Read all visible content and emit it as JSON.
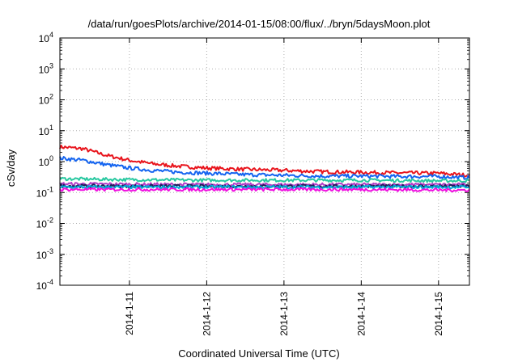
{
  "chart_data": {
    "type": "line",
    "title": "/data/run/goesPlots/archive/2014-01-15/08:00/flux/../bryn/5daysMoon.plot",
    "xlabel": "Coordinated Universal Time (UTC)",
    "ylabel": "cSv/day",
    "yscale": "log",
    "ylim_exponents": [
      -4,
      4
    ],
    "ytick_base": "10",
    "ytick_exponents": [
      "4",
      "3",
      "2",
      "1",
      "0",
      "-1",
      "-2",
      "-3",
      "-4"
    ],
    "xlim_days": [
      10.1,
      15.4
    ],
    "xticks": [
      {
        "day": 11,
        "label": "2014-1-11"
      },
      {
        "day": 12,
        "label": "2014-1-12"
      },
      {
        "day": 13,
        "label": "2014-1-13"
      },
      {
        "day": 14,
        "label": "2014-1-14"
      },
      {
        "day": 15,
        "label": "2014-1-15"
      }
    ],
    "grid": true,
    "series": [
      {
        "color": "#e8141c",
        "points": [
          [
            10.1,
            3.0
          ],
          [
            10.4,
            2.6
          ],
          [
            10.7,
            1.6
          ],
          [
            11.0,
            1.1
          ],
          [
            11.3,
            0.85
          ],
          [
            11.6,
            0.72
          ],
          [
            12.0,
            0.62
          ],
          [
            12.5,
            0.56
          ],
          [
            13.0,
            0.52
          ],
          [
            13.5,
            0.47
          ],
          [
            14.0,
            0.45
          ],
          [
            14.5,
            0.43
          ],
          [
            15.0,
            0.42
          ],
          [
            15.4,
            0.36
          ]
        ]
      },
      {
        "color": "#1464f0",
        "points": [
          [
            10.1,
            1.3
          ],
          [
            10.4,
            1.1
          ],
          [
            10.7,
            0.8
          ],
          [
            11.0,
            0.62
          ],
          [
            11.3,
            0.52
          ],
          [
            11.6,
            0.46
          ],
          [
            12.0,
            0.42
          ],
          [
            12.5,
            0.38
          ],
          [
            13.0,
            0.36
          ],
          [
            13.5,
            0.34
          ],
          [
            14.0,
            0.34
          ],
          [
            14.5,
            0.33
          ],
          [
            15.0,
            0.33
          ],
          [
            15.4,
            0.3
          ]
        ]
      },
      {
        "color": "#28c8a0",
        "points": [
          [
            10.1,
            0.28
          ],
          [
            11.0,
            0.26
          ],
          [
            12.0,
            0.25
          ],
          [
            13.0,
            0.25
          ],
          [
            14.0,
            0.25
          ],
          [
            15.0,
            0.24
          ],
          [
            15.4,
            0.24
          ]
        ]
      },
      {
        "color": "#b43cc8",
        "points": [
          [
            10.1,
            0.19
          ],
          [
            11.0,
            0.185
          ],
          [
            12.0,
            0.18
          ],
          [
            13.0,
            0.18
          ],
          [
            14.0,
            0.18
          ],
          [
            15.0,
            0.18
          ],
          [
            15.4,
            0.18
          ]
        ]
      },
      {
        "color": "#1e1e5a",
        "points": [
          [
            10.1,
            0.165
          ],
          [
            11.0,
            0.16
          ],
          [
            12.0,
            0.16
          ],
          [
            13.0,
            0.16
          ],
          [
            14.0,
            0.16
          ],
          [
            15.0,
            0.16
          ],
          [
            15.4,
            0.16
          ]
        ]
      },
      {
        "color": "#00a8d8",
        "points": [
          [
            10.1,
            0.15
          ],
          [
            11.0,
            0.15
          ],
          [
            12.0,
            0.15
          ],
          [
            13.0,
            0.15
          ],
          [
            14.0,
            0.15
          ],
          [
            15.0,
            0.15
          ],
          [
            15.4,
            0.15
          ]
        ]
      },
      {
        "color": "#f010e0",
        "points": [
          [
            10.1,
            0.125
          ],
          [
            11.0,
            0.125
          ],
          [
            12.0,
            0.125
          ],
          [
            13.0,
            0.125
          ],
          [
            14.0,
            0.125
          ],
          [
            15.0,
            0.12
          ],
          [
            15.4,
            0.12
          ]
        ]
      }
    ]
  }
}
